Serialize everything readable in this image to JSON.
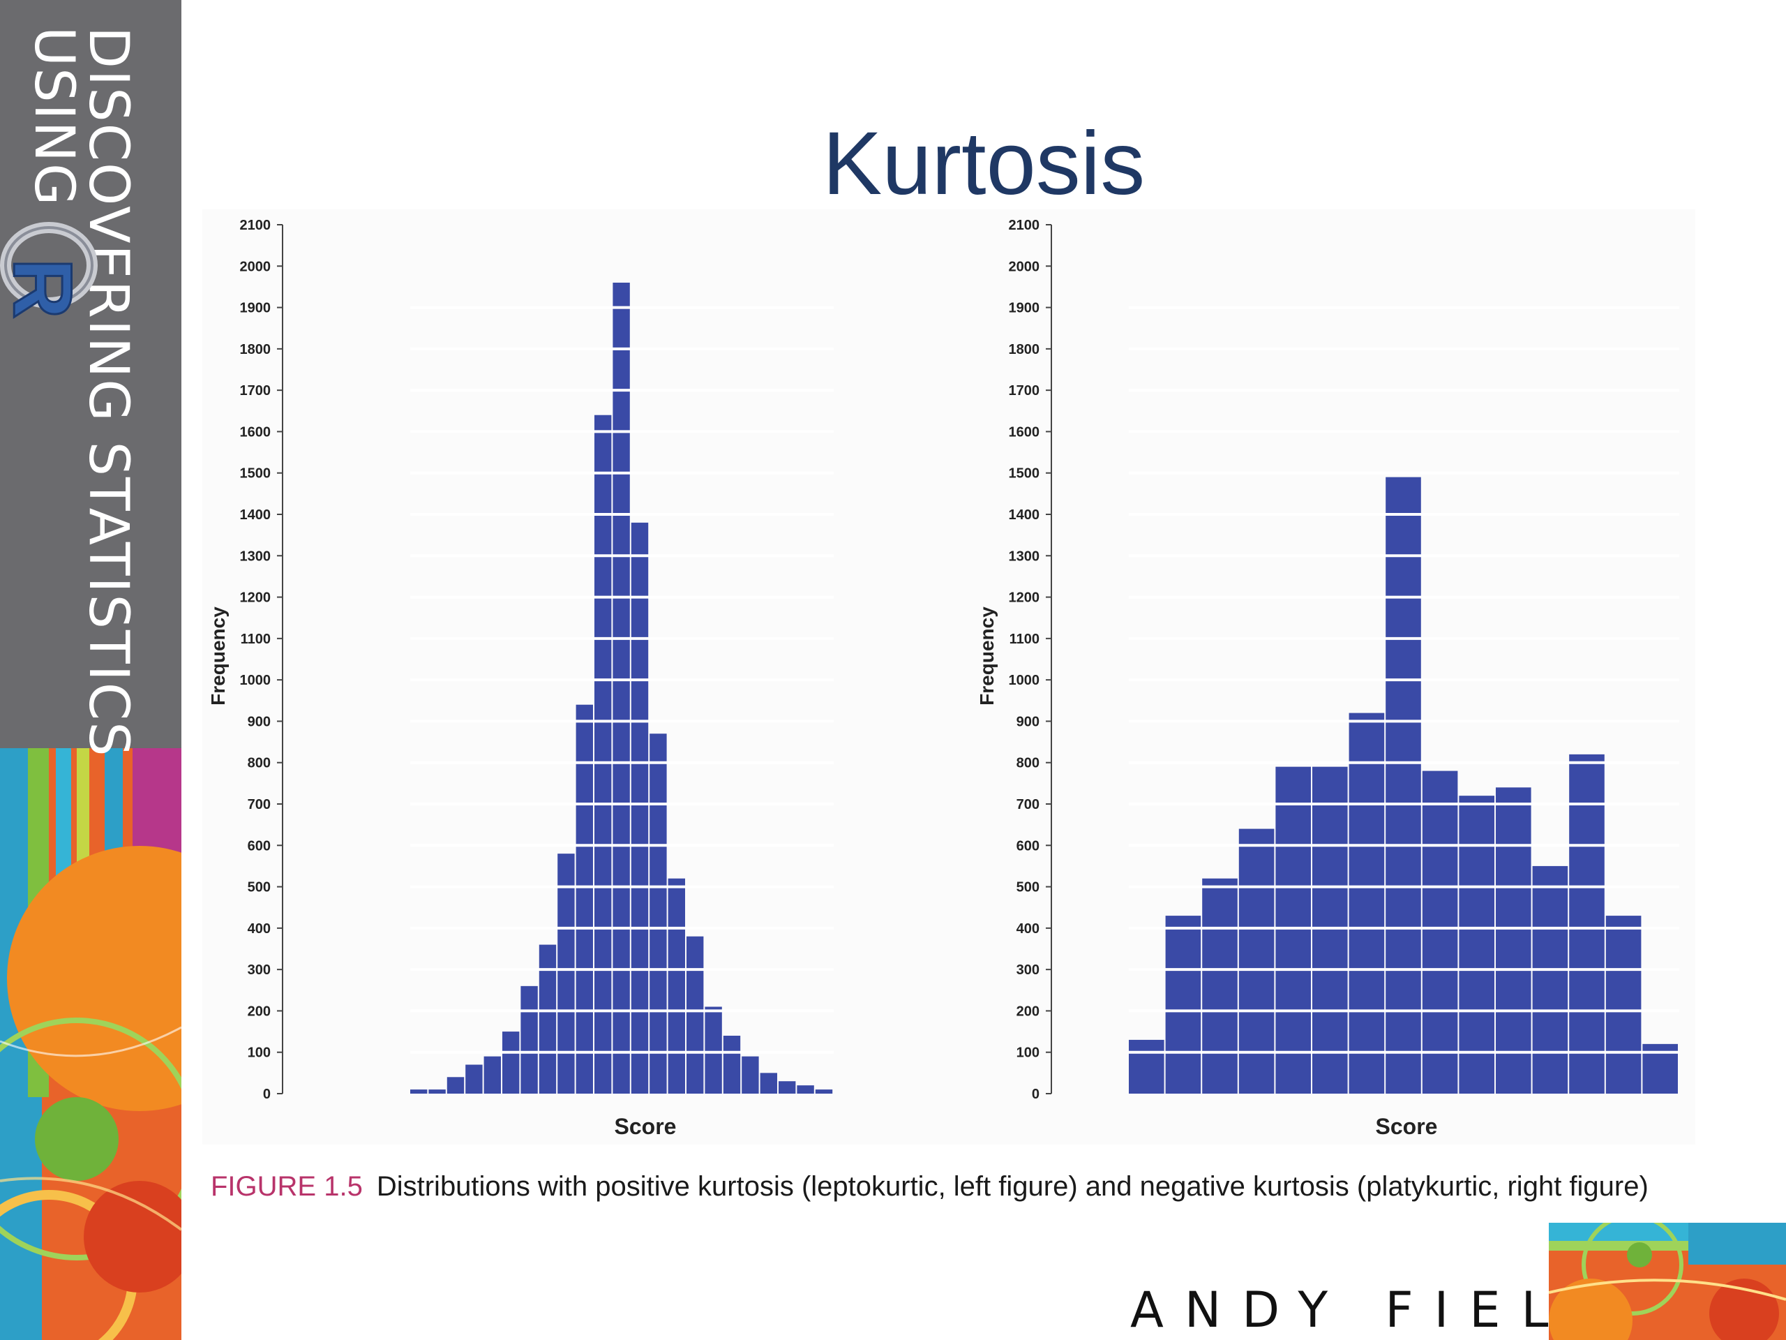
{
  "sidebar": {
    "spine_line1": "DISCOVERING STATISTICS",
    "spine_line2": "USING",
    "logo_letter": "R"
  },
  "slide": {
    "title": "Kurtosis",
    "author": "ANDY FIELD"
  },
  "figure": {
    "caption_label": "FIGURE 1.5",
    "caption_text": "Distributions with positive kurtosis (leptokurtic, left figure) and negative kurtosis (platykurtic, right figure)"
  },
  "colors": {
    "bar_fill": "#3a4aa6",
    "title": "#1f3864",
    "caption_label": "#b8336a",
    "sidebar": "#6b6b6e"
  },
  "chart_data": [
    {
      "type": "bar",
      "ylabel": "Frequency",
      "xlabel": "Score",
      "ylim": [
        0,
        2100
      ],
      "yticks": [
        0,
        100,
        200,
        300,
        400,
        500,
        600,
        700,
        800,
        900,
        1000,
        1100,
        1200,
        1300,
        1400,
        1500,
        1600,
        1700,
        1800,
        1900,
        2000,
        2100
      ],
      "gridlines_at": [
        100,
        200,
        300,
        400,
        500,
        600,
        700,
        800,
        900,
        1000,
        1100,
        1200,
        1300,
        1400,
        1500,
        1600,
        1700,
        1800,
        1900
      ],
      "values": [
        10,
        10,
        40,
        70,
        90,
        150,
        260,
        360,
        580,
        940,
        1640,
        1960,
        1380,
        870,
        520,
        380,
        210,
        140,
        90,
        50,
        30,
        20,
        10
      ]
    },
    {
      "type": "bar",
      "ylabel": "Frequency",
      "xlabel": "Score",
      "ylim": [
        0,
        2100
      ],
      "yticks": [
        0,
        100,
        200,
        300,
        400,
        500,
        600,
        700,
        800,
        900,
        1000,
        1100,
        1200,
        1300,
        1400,
        1500,
        1600,
        1700,
        1800,
        1900,
        2000,
        2100
      ],
      "gridlines_at": [
        100,
        200,
        300,
        400,
        500,
        600,
        700,
        800,
        900,
        1000,
        1100,
        1200,
        1300,
        1400,
        1500,
        1600,
        1700,
        1800,
        1900
      ],
      "values": [
        130,
        430,
        520,
        640,
        790,
        790,
        920,
        1490,
        780,
        720,
        740,
        550,
        820,
        430,
        120
      ]
    }
  ]
}
